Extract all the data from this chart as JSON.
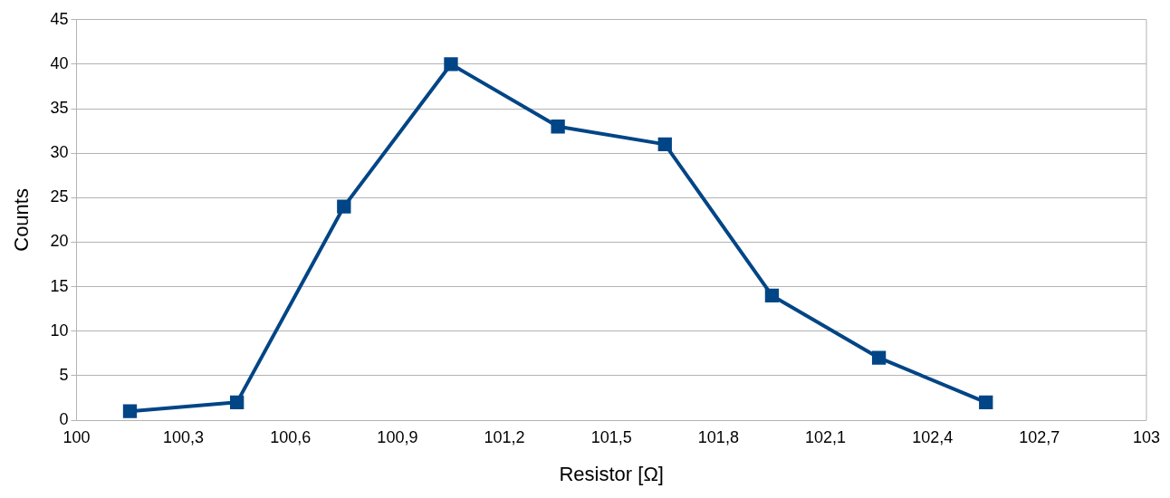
{
  "chart_data": {
    "type": "line",
    "xlabel": "Resistor [Ω]",
    "ylabel": "Counts",
    "x": [
      100.15,
      100.45,
      100.75,
      101.05,
      101.35,
      101.65,
      101.95,
      102.25,
      102.55
    ],
    "series": [
      {
        "color": "#004586",
        "values": [
          1,
          2,
          24,
          40,
          33,
          31,
          14,
          7,
          2
        ]
      }
    ],
    "xlim": [
      100,
      103
    ],
    "xticks": [
      100,
      {
        "value": 100.3,
        "label": "100,3"
      },
      {
        "value": 100.6,
        "label": "100,6"
      },
      {
        "value": 100.9,
        "label": "100,9"
      },
      {
        "value": 101.2,
        "label": "101,2"
      },
      {
        "value": 101.5,
        "label": "101,5"
      },
      {
        "value": 101.8,
        "label": "101,8"
      },
      {
        "value": 102.1,
        "label": "102,1"
      },
      {
        "value": 102.4,
        "label": "102,4"
      },
      {
        "value": 102.7,
        "label": "102,7"
      },
      103
    ],
    "ylim": [
      0,
      45
    ],
    "yticks": [
      0,
      5,
      10,
      15,
      20,
      25,
      30,
      35,
      40,
      45
    ],
    "grid": "y",
    "legend": false,
    "marker": "square",
    "line_style": "solid"
  }
}
